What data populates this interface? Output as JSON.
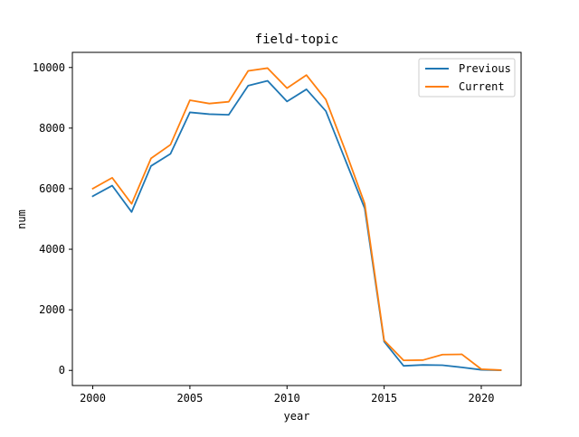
{
  "chart_data": {
    "type": "line",
    "title": "field-topic",
    "xlabel": "year",
    "ylabel": "num",
    "xlim": [
      1998.95,
      2022.05
    ],
    "ylim": [
      -500,
      10500
    ],
    "xticks": [
      2000,
      2005,
      2010,
      2015,
      2020
    ],
    "yticks": [
      0,
      2000,
      4000,
      6000,
      8000,
      10000
    ],
    "grid": false,
    "legend_position": "top-right",
    "x": [
      2000,
      2001,
      2002,
      2003,
      2004,
      2005,
      2006,
      2007,
      2008,
      2009,
      2010,
      2011,
      2012,
      2013,
      2014,
      2015,
      2016,
      2017,
      2018,
      2019,
      2020,
      2021
    ],
    "series": [
      {
        "name": "Previous",
        "color": "#1f77b4",
        "values": [
          5750,
          6100,
          5230,
          6750,
          7150,
          8520,
          8460,
          8440,
          9400,
          9560,
          8880,
          9280,
          8560,
          6950,
          5350,
          950,
          150,
          180,
          170,
          100,
          20,
          5
        ]
      },
      {
        "name": "Current",
        "color": "#ff7f0e",
        "values": [
          6000,
          6360,
          5500,
          7000,
          7450,
          8920,
          8810,
          8870,
          9890,
          9980,
          9320,
          9750,
          8940,
          7260,
          5500,
          990,
          330,
          340,
          520,
          530,
          40,
          10
        ]
      }
    ]
  }
}
